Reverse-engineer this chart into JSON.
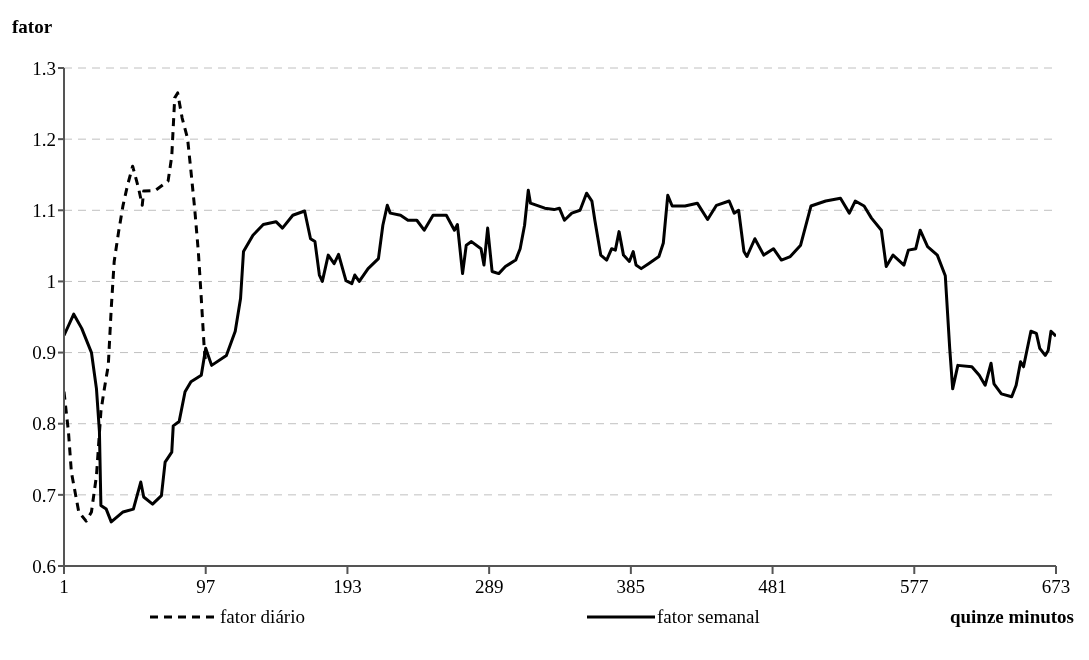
{
  "chart_data": {
    "type": "line",
    "ylabel": "fator",
    "xlabel": "quinze minutos",
    "xlim": [
      1,
      673
    ],
    "xticks": [
      1,
      97,
      193,
      289,
      385,
      481,
      577,
      673
    ],
    "ylim": [
      0.6,
      1.3
    ],
    "yticks": [
      0.6,
      0.7,
      0.8,
      0.9,
      1,
      1.1,
      1.2,
      1.3
    ],
    "grid": "y",
    "legend": "bottom",
    "marker": "none",
    "series": [
      {
        "name": "fator diário",
        "color": "#000000",
        "line_style": "dashed",
        "x": [
          1,
          4,
          6,
          11,
          16,
          19.6,
          23,
          26,
          28,
          31,
          33,
          35,
          38,
          41,
          44,
          47.5,
          51.5,
          54,
          55,
          63,
          71.5,
          74,
          76,
          78,
          81,
          84.7,
          87,
          89.5,
          92,
          94,
          96,
          97
        ],
        "values": [
          0.845,
          0.789,
          0.732,
          0.676,
          0.663,
          0.676,
          0.727,
          0.817,
          0.845,
          0.882,
          0.962,
          1.028,
          1.07,
          1.107,
          1.135,
          1.162,
          1.131,
          1.107,
          1.127,
          1.128,
          1.141,
          1.176,
          1.258,
          1.265,
          1.23,
          1.201,
          1.155,
          1.103,
          1.042,
          0.976,
          0.906,
          0.885
        ]
      },
      {
        "name": "fator semanal",
        "color": "#000000",
        "line_style": "solid",
        "x": [
          1,
          7.6,
          13,
          19.6,
          23,
          25,
          26,
          29.6,
          33,
          41,
          48,
          53,
          55,
          61,
          67,
          69.5,
          74,
          75,
          79,
          83,
          87,
          94,
          97,
          101,
          111,
          117,
          120.6,
          122.6,
          129,
          136,
          144.6,
          149,
          156,
          164,
          168,
          171,
          174,
          176,
          180,
          184,
          187,
          192,
          196,
          198,
          201,
          207,
          214,
          217,
          220,
          222,
          229,
          234,
          240,
          245,
          251,
          260,
          265.5,
          267.5,
          271,
          273.5,
          277,
          283.5,
          285.5,
          288,
          291,
          295.5,
          300,
          307,
          310,
          313,
          315.5,
          317,
          326.7,
          333,
          336.6,
          340,
          345,
          350.6,
          355,
          358.6,
          360.6,
          364.6,
          368.6,
          372,
          374.5,
          377,
          380,
          384,
          386.6,
          388.5,
          392,
          397,
          404,
          407,
          410,
          413,
          421.7,
          430,
          437,
          443,
          451.6,
          455,
          458,
          461.6,
          463.6,
          469,
          475,
          481.6,
          487,
          493,
          500,
          507,
          517,
          527,
          533,
          537,
          543,
          548,
          554.7,
          558,
          562.6,
          570,
          573,
          578,
          581,
          586,
          592.6,
          598,
          601,
          603,
          606.5,
          616,
          621,
          625,
          629,
          631,
          636,
          643,
          646,
          649,
          651,
          656,
          659.7,
          662,
          665.7,
          667.7,
          669.6,
          673
        ],
        "values": [
          0.924,
          0.954,
          0.934,
          0.9,
          0.849,
          0.789,
          0.685,
          0.68,
          0.662,
          0.676,
          0.68,
          0.718,
          0.697,
          0.687,
          0.699,
          0.746,
          0.76,
          0.797,
          0.803,
          0.845,
          0.859,
          0.868,
          0.906,
          0.882,
          0.896,
          0.93,
          0.976,
          1.042,
          1.065,
          1.08,
          1.084,
          1.075,
          1.093,
          1.099,
          1.06,
          1.056,
          1.009,
          1.0,
          1.037,
          1.025,
          1.038,
          1.001,
          0.997,
          1.009,
          1.0,
          1.018,
          1.032,
          1.079,
          1.107,
          1.096,
          1.093,
          1.086,
          1.086,
          1.072,
          1.093,
          1.093,
          1.072,
          1.08,
          1.011,
          1.051,
          1.056,
          1.046,
          1.023,
          1.075,
          1.014,
          1.011,
          1.021,
          1.03,
          1.046,
          1.079,
          1.128,
          1.11,
          1.103,
          1.101,
          1.103,
          1.086,
          1.096,
          1.1,
          1.124,
          1.113,
          1.086,
          1.037,
          1.03,
          1.046,
          1.044,
          1.07,
          1.037,
          1.028,
          1.042,
          1.023,
          1.018,
          1.025,
          1.035,
          1.054,
          1.121,
          1.106,
          1.106,
          1.11,
          1.087,
          1.107,
          1.113,
          1.096,
          1.1,
          1.042,
          1.035,
          1.06,
          1.037,
          1.046,
          1.03,
          1.035,
          1.051,
          1.106,
          1.113,
          1.117,
          1.096,
          1.113,
          1.106,
          1.089,
          1.072,
          1.021,
          1.037,
          1.023,
          1.044,
          1.046,
          1.072,
          1.049,
          1.037,
          1.008,
          0.906,
          0.849,
          0.882,
          0.88,
          0.868,
          0.854,
          0.885,
          0.856,
          0.842,
          0.838,
          0.854,
          0.887,
          0.88,
          0.93,
          0.927,
          0.906,
          0.896,
          0.903,
          0.93,
          0.923
        ]
      }
    ]
  }
}
